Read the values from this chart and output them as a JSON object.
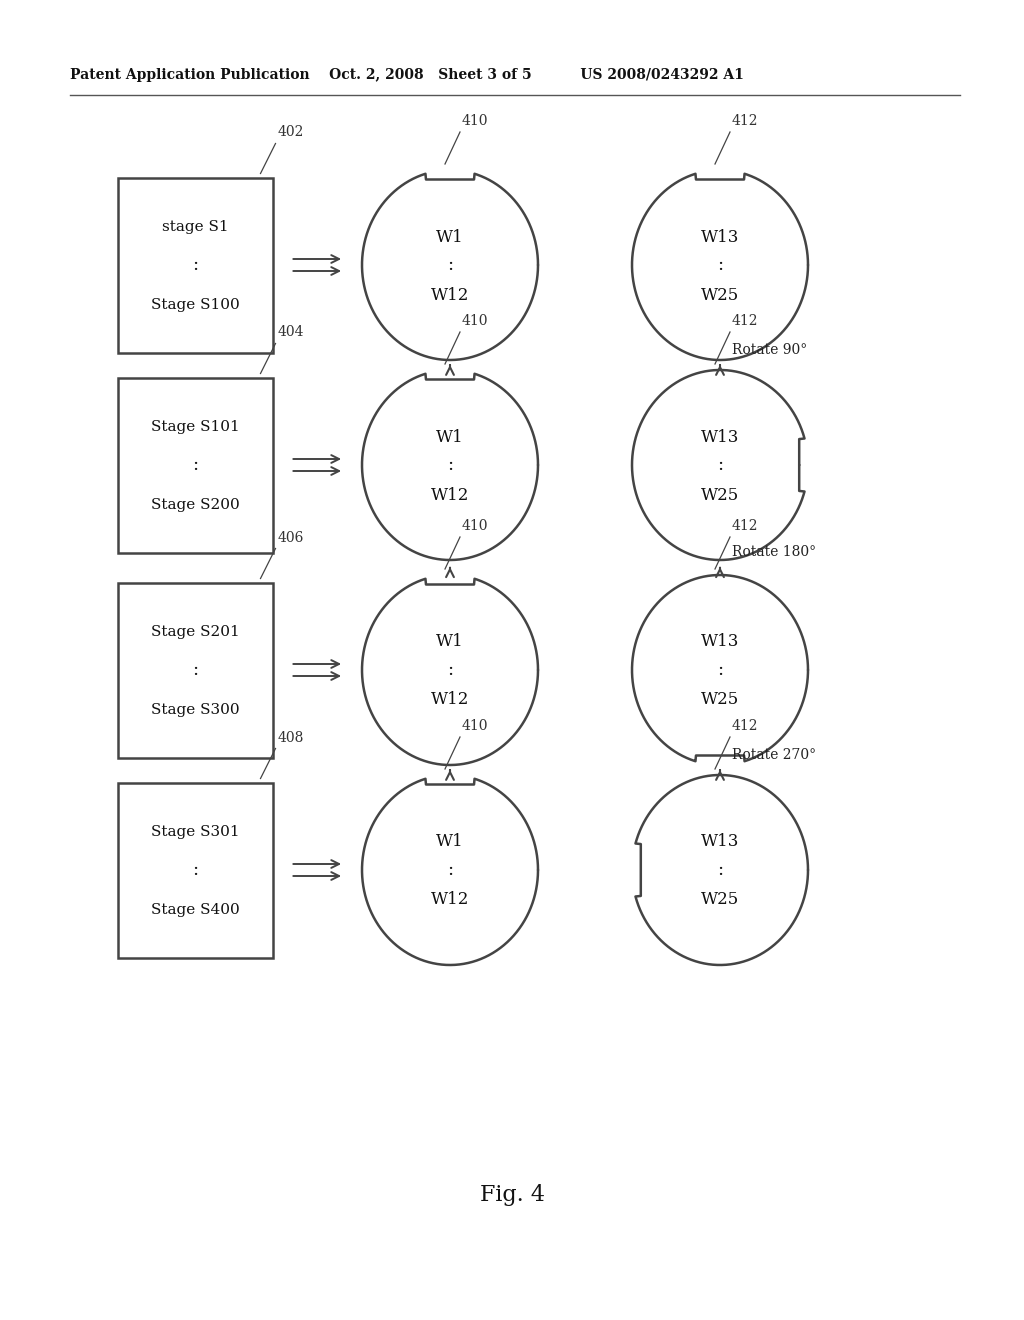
{
  "bg_color": "#ffffff",
  "header": "Patent Application Publication    Oct. 2, 2008   Sheet 3 of 5          US 2008/0243292 A1",
  "fig_label": "Fig. 4",
  "rows": [
    {
      "box_label": "402",
      "box_text": [
        "stage S1",
        ":",
        "Stage S100"
      ],
      "c1_label": "410",
      "c1_text": [
        "W1",
        ":",
        "W12"
      ],
      "c1_notch": "top",
      "c2_label": "412",
      "c2_text": [
        "W13",
        ":",
        "W25"
      ],
      "c2_notch": "top",
      "rotate_text": "",
      "has_arrows_above": false
    },
    {
      "box_label": "404",
      "box_text": [
        "Stage S101",
        ":",
        "Stage S200"
      ],
      "c1_label": "410",
      "c1_text": [
        "W1",
        ":",
        "W12"
      ],
      "c1_notch": "top",
      "c2_label": "412",
      "c2_text": [
        "W13",
        ":",
        "W25"
      ],
      "c2_notch": "right",
      "rotate_text": "Rotate 90°",
      "has_arrows_above": true
    },
    {
      "box_label": "406",
      "box_text": [
        "Stage S201",
        ":",
        "Stage S300"
      ],
      "c1_label": "410",
      "c1_text": [
        "W1",
        ":",
        "W12"
      ],
      "c1_notch": "top",
      "c2_label": "412",
      "c2_text": [
        "W13",
        ":",
        "W25"
      ],
      "c2_notch": "bottom",
      "rotate_text": "Rotate 180°",
      "has_arrows_above": true
    },
    {
      "box_label": "408",
      "box_text": [
        "Stage S301",
        ":",
        "Stage S400"
      ],
      "c1_label": "410",
      "c1_text": [
        "W1",
        ":",
        "W12"
      ],
      "c1_notch": "top",
      "c2_label": "412",
      "c2_text": [
        "W13",
        ":",
        "W25"
      ],
      "c2_notch": "left",
      "rotate_text": "Rotate 270°",
      "has_arrows_above": true
    }
  ]
}
